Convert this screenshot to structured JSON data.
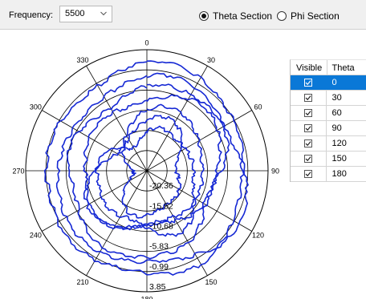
{
  "toolbar": {
    "frequency_label": "Frequency:",
    "frequency_value": "5500",
    "sections": [
      {
        "label": "Theta Section",
        "selected": true
      },
      {
        "label": "Phi Section",
        "selected": false
      }
    ]
  },
  "polar_plot": {
    "angle_labels": [
      "0",
      "330",
      "300",
      "270",
      "240",
      "210",
      "180",
      "150",
      "120",
      "90",
      "60",
      "30"
    ],
    "radial_labels": [
      "-20.36",
      "-15.52",
      "-10.68",
      "-5.83",
      "-0.99",
      "3.85"
    ],
    "radial_range": [
      -25.2,
      3.85
    ],
    "trace_color": "#1528d4"
  },
  "theta_table": {
    "headers": {
      "visible": "Visible",
      "theta": "Theta"
    },
    "rows": [
      {
        "theta": "0",
        "visible": true,
        "selected": true
      },
      {
        "theta": "30",
        "visible": true,
        "selected": false
      },
      {
        "theta": "60",
        "visible": true,
        "selected": false
      },
      {
        "theta": "90",
        "visible": true,
        "selected": false
      },
      {
        "theta": "120",
        "visible": true,
        "selected": false
      },
      {
        "theta": "150",
        "visible": true,
        "selected": false
      },
      {
        "theta": "180",
        "visible": true,
        "selected": false
      }
    ]
  }
}
